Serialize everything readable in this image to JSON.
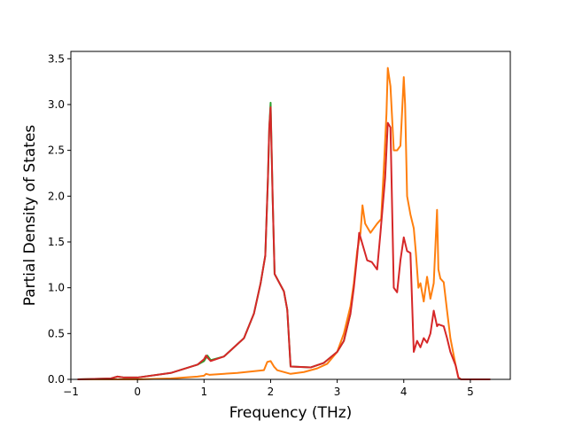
{
  "chart_data": {
    "type": "line",
    "xlabel": "Frequency (THz)",
    "ylabel": "Partial Density of States",
    "xlim": [
      -1.0,
      5.6
    ],
    "ylim": [
      0.0,
      3.58
    ],
    "grid": false,
    "x_ticks": [
      -1,
      0,
      1,
      2,
      3,
      4,
      5
    ],
    "x_tick_labels": [
      "−1",
      "0",
      "1",
      "2",
      "3",
      "4",
      "5"
    ],
    "y_ticks": [
      0.0,
      0.5,
      1.0,
      1.5,
      2.0,
      2.5,
      3.0,
      3.5
    ],
    "y_tick_labels": [
      "0.0",
      "0.5",
      "1.0",
      "1.5",
      "2.0",
      "2.5",
      "3.0",
      "3.5"
    ],
    "series": [
      {
        "color": "#2ca02c",
        "x": [
          -0.9,
          -0.4,
          -0.3,
          -0.2,
          0.0,
          0.5,
          0.9,
          1.0,
          1.05,
          1.1,
          1.3,
          1.6,
          1.75,
          1.85,
          1.92,
          1.96,
          1.98,
          2.0,
          2.03,
          2.06,
          2.2,
          2.25,
          2.3,
          2.6,
          2.8,
          3.0,
          3.1,
          3.2
        ],
        "y": [
          0.0,
          0.01,
          0.03,
          0.02,
          0.02,
          0.07,
          0.16,
          0.2,
          0.26,
          0.21,
          0.25,
          0.45,
          0.72,
          1.05,
          1.35,
          2.2,
          2.75,
          3.02,
          2.0,
          1.15,
          0.96,
          0.76,
          0.14,
          0.13,
          0.18,
          0.3,
          0.42,
          0.72
        ]
      },
      {
        "color": "#ff7f0e",
        "x": [
          -0.9,
          0.0,
          0.5,
          0.9,
          1.0,
          1.03,
          1.08,
          1.5,
          1.9,
          1.95,
          2.0,
          2.05,
          2.1,
          2.3,
          2.5,
          2.7,
          2.85,
          3.0,
          3.1,
          3.2,
          3.25,
          3.3,
          3.35,
          3.38,
          3.42,
          3.5,
          3.55,
          3.6,
          3.66,
          3.7,
          3.74,
          3.76,
          3.8,
          3.85,
          3.9,
          3.95,
          4.0,
          4.02,
          4.05,
          4.1,
          4.15,
          4.18,
          4.22,
          4.25,
          4.3,
          4.35,
          4.4,
          4.45,
          4.5,
          4.52,
          4.55,
          4.6,
          4.65,
          4.7,
          4.78,
          4.82,
          4.86,
          5.0,
          5.3
        ],
        "y": [
          0.0,
          0.0,
          0.01,
          0.03,
          0.04,
          0.06,
          0.05,
          0.07,
          0.1,
          0.19,
          0.2,
          0.14,
          0.1,
          0.06,
          0.08,
          0.12,
          0.17,
          0.3,
          0.5,
          0.8,
          1.05,
          1.4,
          1.6,
          1.9,
          1.7,
          1.6,
          1.65,
          1.7,
          1.75,
          2.3,
          2.9,
          3.4,
          3.2,
          2.5,
          2.5,
          2.55,
          3.3,
          3.0,
          2.0,
          1.8,
          1.65,
          1.4,
          1.0,
          1.05,
          0.85,
          1.12,
          0.88,
          1.05,
          1.85,
          1.2,
          1.1,
          1.06,
          0.75,
          0.45,
          0.15,
          0.02,
          0.0,
          0.0,
          0.0
        ]
      },
      {
        "color": "#d62728",
        "x": [
          -0.9,
          -0.4,
          -0.3,
          -0.2,
          0.0,
          0.5,
          0.9,
          1.0,
          1.03,
          1.06,
          1.1,
          1.3,
          1.6,
          1.75,
          1.85,
          1.92,
          1.96,
          1.98,
          2.0,
          2.03,
          2.06,
          2.2,
          2.25,
          2.3,
          2.6,
          2.8,
          3.0,
          3.1,
          3.2,
          3.25,
          3.3,
          3.33,
          3.37,
          3.45,
          3.52,
          3.6,
          3.65,
          3.72,
          3.76,
          3.8,
          3.85,
          3.9,
          3.95,
          4.0,
          4.05,
          4.1,
          4.15,
          4.2,
          4.25,
          4.3,
          4.35,
          4.4,
          4.45,
          4.5,
          4.52,
          4.6,
          4.65,
          4.7,
          4.78,
          4.82,
          4.86,
          5.0,
          5.3
        ],
        "y": [
          0.0,
          0.01,
          0.03,
          0.02,
          0.02,
          0.07,
          0.16,
          0.22,
          0.26,
          0.23,
          0.2,
          0.25,
          0.45,
          0.72,
          1.05,
          1.35,
          2.2,
          2.75,
          2.97,
          2.0,
          1.15,
          0.96,
          0.76,
          0.14,
          0.13,
          0.18,
          0.3,
          0.42,
          0.72,
          1.0,
          1.35,
          1.6,
          1.5,
          1.3,
          1.28,
          1.2,
          1.6,
          2.2,
          2.8,
          2.75,
          1.0,
          0.95,
          1.3,
          1.55,
          1.4,
          1.38,
          0.3,
          0.42,
          0.35,
          0.45,
          0.4,
          0.5,
          0.75,
          0.58,
          0.6,
          0.58,
          0.45,
          0.3,
          0.15,
          0.02,
          0.0,
          0.0,
          0.0
        ]
      }
    ]
  }
}
